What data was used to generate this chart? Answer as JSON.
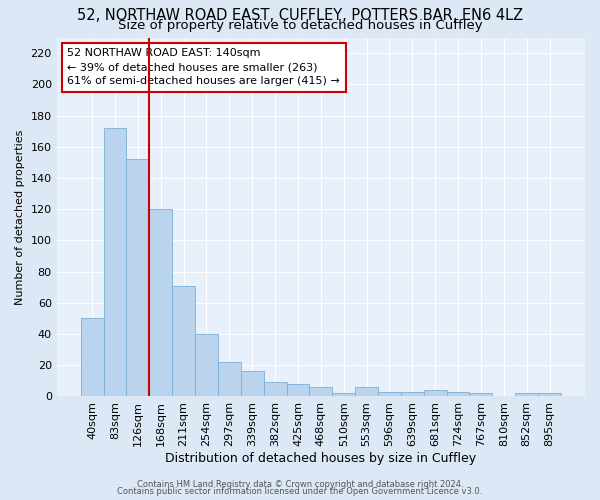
{
  "title_line1": "52, NORTHAW ROAD EAST, CUFFLEY, POTTERS BAR, EN6 4LZ",
  "title_line2": "Size of property relative to detached houses in Cuffley",
  "xlabel": "Distribution of detached houses by size in Cuffley",
  "ylabel": "Number of detached properties",
  "footer_line1": "Contains HM Land Registry data © Crown copyright and database right 2024.",
  "footer_line2": "Contains public sector information licensed under the Open Government Licence v3.0.",
  "annotation_text": "52 NORTHAW ROAD EAST: 140sqm\n← 39% of detached houses are smaller (263)\n61% of semi-detached houses are larger (415) →",
  "bar_color": "#bad4ee",
  "bar_edge_color": "#7aafd4",
  "vline_color": "#cc0000",
  "vline_x": 2.5,
  "background_color": "#dce8f5",
  "plot_bg_color": "#e8f0fb",
  "grid_color": "#ffffff",
  "categories": [
    "40sqm",
    "83sqm",
    "126sqm",
    "168sqm",
    "211sqm",
    "254sqm",
    "297sqm",
    "339sqm",
    "382sqm",
    "425sqm",
    "468sqm",
    "510sqm",
    "553sqm",
    "596sqm",
    "639sqm",
    "681sqm",
    "724sqm",
    "767sqm",
    "810sqm",
    "852sqm",
    "895sqm"
  ],
  "values": [
    50,
    172,
    152,
    120,
    71,
    40,
    22,
    16,
    9,
    8,
    6,
    2,
    6,
    3,
    3,
    4,
    3,
    2,
    0,
    2,
    2
  ],
  "ylim": [
    0,
    230
  ],
  "yticks": [
    0,
    20,
    40,
    60,
    80,
    100,
    120,
    140,
    160,
    180,
    200,
    220
  ],
  "title1_fontsize": 10.5,
  "title2_fontsize": 9.5,
  "xlabel_fontsize": 9,
  "ylabel_fontsize": 8,
  "tick_fontsize": 8,
  "annot_fontsize": 8,
  "footer_fontsize": 6
}
